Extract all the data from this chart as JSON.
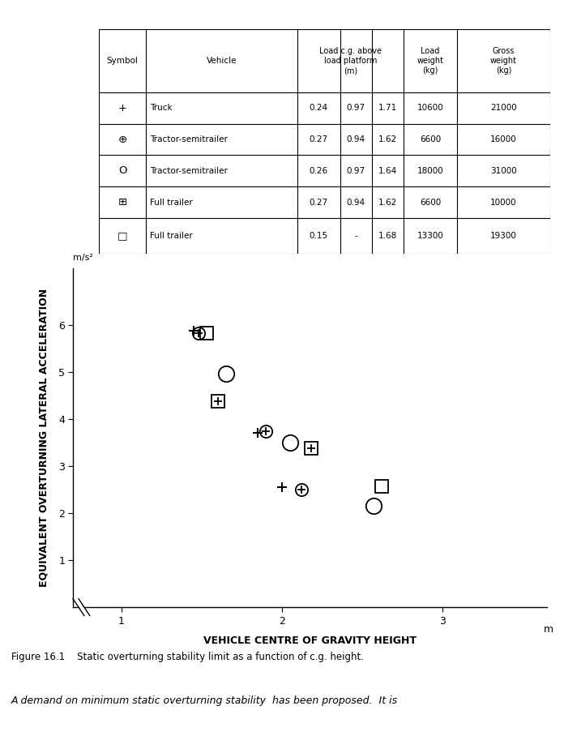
{
  "title": "Figure 16.1   Static overturning stability limit as a function of c.g. height.",
  "xlabel": "VEHICLE CENTRE OF GRAVITY HEIGHT",
  "ylabel": "EQUIVALENT OVERTURNING LATERAL ACCELERATION",
  "xunit": "m",
  "yunit": "m/s²",
  "xlim": [
    0.7,
    3.65
  ],
  "ylim": [
    0,
    7.2
  ],
  "xticks": [
    1,
    2,
    3
  ],
  "yticks": [
    1,
    2,
    3,
    4,
    5,
    6
  ],
  "data_points": {
    "plus": {
      "label": "Truck",
      "points": [
        [
          1.45,
          5.88
        ],
        [
          1.85,
          3.7
        ],
        [
          2.0,
          2.55
        ]
      ]
    },
    "circle_plus": {
      "label": "Tractor-semitrailer (6600kg)",
      "points": [
        [
          1.48,
          5.82
        ],
        [
          1.9,
          3.75
        ],
        [
          2.12,
          2.5
        ]
      ]
    },
    "circle": {
      "label": "Tractor-semitrailer (18000kg)",
      "points": [
        [
          1.65,
          4.97
        ],
        [
          2.05,
          3.5
        ],
        [
          2.57,
          2.15
        ]
      ]
    },
    "square_plus": {
      "label": "Full trailer (6600kg)",
      "points": [
        [
          1.6,
          4.38
        ],
        [
          2.18,
          3.38
        ]
      ]
    },
    "square": {
      "label": "Full trailer (13300kg)",
      "points": [
        [
          1.53,
          5.82
        ],
        [
          2.62,
          2.57
        ]
      ]
    }
  },
  "caption": "Figure 16.1    Static overturning stability limit as a function of c.g. height.",
  "bottom_text": "A demand on minimum static overturning stability  has been proposed.  It is",
  "background_color": "#ffffff",
  "text_color": "#000000"
}
